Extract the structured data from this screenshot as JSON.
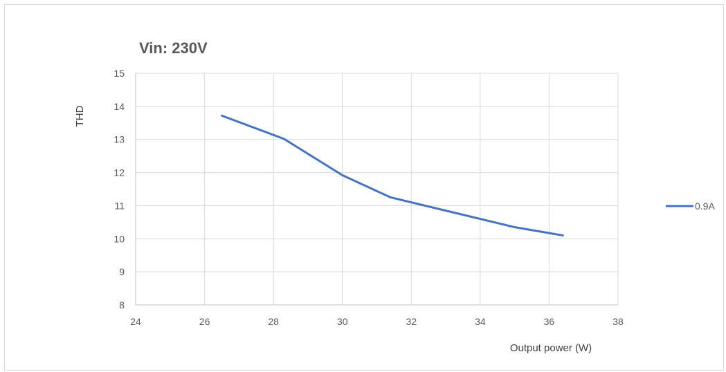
{
  "chart_data": {
    "type": "line",
    "title": "Vin: 230V",
    "xlabel": "Output power (W)",
    "ylabel": "THD",
    "xlim": [
      24,
      38
    ],
    "ylim": [
      8,
      15
    ],
    "xticks": [
      24,
      26,
      28,
      30,
      32,
      34,
      36,
      38
    ],
    "yticks": [
      8,
      9,
      10,
      11,
      12,
      13,
      14,
      15
    ],
    "grid": true,
    "legend_position": "right",
    "series": [
      {
        "name": "0.9A",
        "color": "#4472c4",
        "x": [
          26.5,
          28.3,
          30.0,
          31.4,
          33.2,
          35.0,
          36.4
        ],
        "y": [
          13.72,
          13.02,
          11.92,
          11.25,
          10.8,
          10.35,
          10.1
        ]
      }
    ]
  }
}
